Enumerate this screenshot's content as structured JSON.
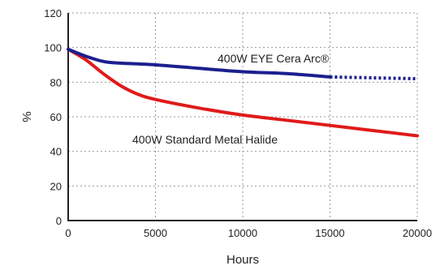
{
  "chart_data": {
    "type": "line",
    "xlabel": "Hours",
    "ylabel": "%",
    "xlim": [
      0,
      20000
    ],
    "ylim": [
      0,
      120
    ],
    "x_ticks": [
      "0",
      "5000",
      "10000",
      "15000",
      "20000"
    ],
    "y_ticks": [
      "0",
      "20",
      "40",
      "60",
      "80",
      "100",
      "120"
    ],
    "grid": true,
    "series": [
      {
        "name": "400W EYE Cera Arc®",
        "color": "#1c1f8e",
        "x": [
          0,
          1000,
          2000,
          3000,
          5000,
          7500,
          10000,
          12500,
          15000
        ],
        "y": [
          99,
          95,
          92,
          91,
          90,
          88,
          86,
          85,
          83
        ],
        "extrapolated": {
          "x": [
            15000,
            17500,
            20000
          ],
          "y": [
            83,
            82.5,
            82
          ],
          "style": "dotted"
        }
      },
      {
        "name": "400W Standard Metal Halide",
        "color": "#e01a1a",
        "x": [
          0,
          1000,
          2000,
          3000,
          4000,
          5000,
          7500,
          10000,
          12500,
          15000,
          17500,
          20000
        ],
        "y": [
          99,
          93,
          85,
          78,
          73,
          70,
          65,
          61,
          58,
          55,
          52,
          49
        ]
      }
    ]
  }
}
